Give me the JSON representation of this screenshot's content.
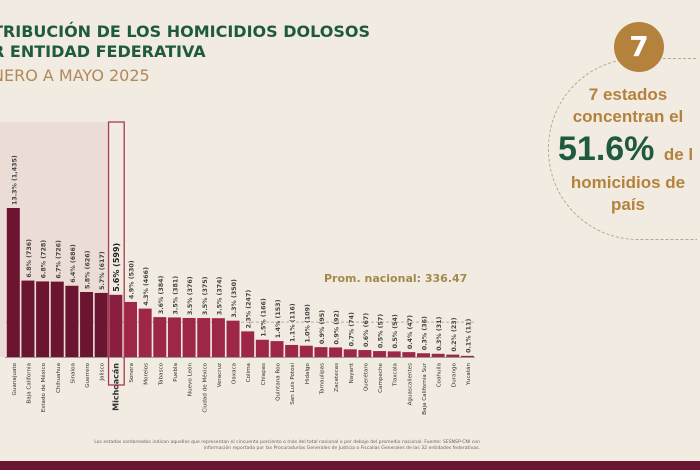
{
  "header": {
    "title": "TRIBUCIÓN DE LOS HOMICIDIOS DOLOSOS\nR ENTIDAD FEDERATIVA",
    "subtitle": "NERO A MAYO 2025"
  },
  "panel": {
    "badge": "7",
    "line1": "7 estados",
    "line2": "concentran el",
    "big": "51.6%",
    "big_suffix": "de l",
    "line3": "homicidios de",
    "line4": "país"
  },
  "footnote": "Los estados sombreados indican aquellos que representan el cincuenta porciento o más del total nacional o por debajo del promedio nacional. Fuente: SESNSP-CNI con información reportada por las Procuradurías Generales de Justicia o Fiscalías Generales de las 32 entidades federativas.",
  "colors": {
    "dark": "#6b1530",
    "bar": "#9e2748",
    "green": "#1f5a3e",
    "gold": "#b4823c"
  },
  "chart_data": {
    "type": "bar",
    "average_label": "Prom. nacional: 336.47",
    "average": 336.47,
    "highlight": "Michoacán",
    "shaded_count": 7,
    "categories": [
      "Guanajuato",
      "Baja California",
      "Estado de México",
      "Chihuahua",
      "Sinaloa",
      "Guerrero",
      "Jalisco",
      "Michoacán",
      "Sonora",
      "Morelos",
      "Tabasco",
      "Puebla",
      "Nuevo León",
      "Ciudad de México",
      "Veracruz",
      "Oaxaca",
      "Colima",
      "Chiapas",
      "Quintana Roo",
      "San Luis Potosí",
      "Hidalgo",
      "Tamaulipas",
      "Zacatecas",
      "Nayarit",
      "Querétaro",
      "Campeche",
      "Tlaxcala",
      "Aguascalientes",
      "Baja California Sur",
      "Coahuila",
      "Durango",
      "Yucatán"
    ],
    "values": [
      1435,
      736,
      728,
      726,
      686,
      626,
      617,
      599,
      530,
      466,
      384,
      381,
      376,
      375,
      374,
      350,
      247,
      166,
      153,
      116,
      109,
      95,
      92,
      74,
      67,
      57,
      54,
      47,
      36,
      31,
      23,
      11
    ],
    "labels": [
      "13.3% (1,435)",
      "6.8% (736)",
      "6.8% (728)",
      "6.7% (726)",
      "6.4% (686)",
      "5.8% (626)",
      "5.7% (617)",
      "5.6% (599)",
      "4.9% (530)",
      "4.3% (466)",
      "3.6% (384)",
      "3.5% (381)",
      "3.5% (376)",
      "3.5% (375)",
      "3.5% (374)",
      "3.3% (350)",
      "2.3% (247)",
      "1.5% (166)",
      "1.4% (153)",
      "1.1% (116)",
      "1.0% (109)",
      "0.9% (95)",
      "0.9% (92)",
      "0.7% (74)",
      "0.6% (67)",
      "0.5% (57)",
      "0.5% (54)",
      "0.4% (47)",
      "0.3% (36)",
      "0.3% (31)",
      "0.2% (23)",
      "0.1% (11)"
    ]
  }
}
